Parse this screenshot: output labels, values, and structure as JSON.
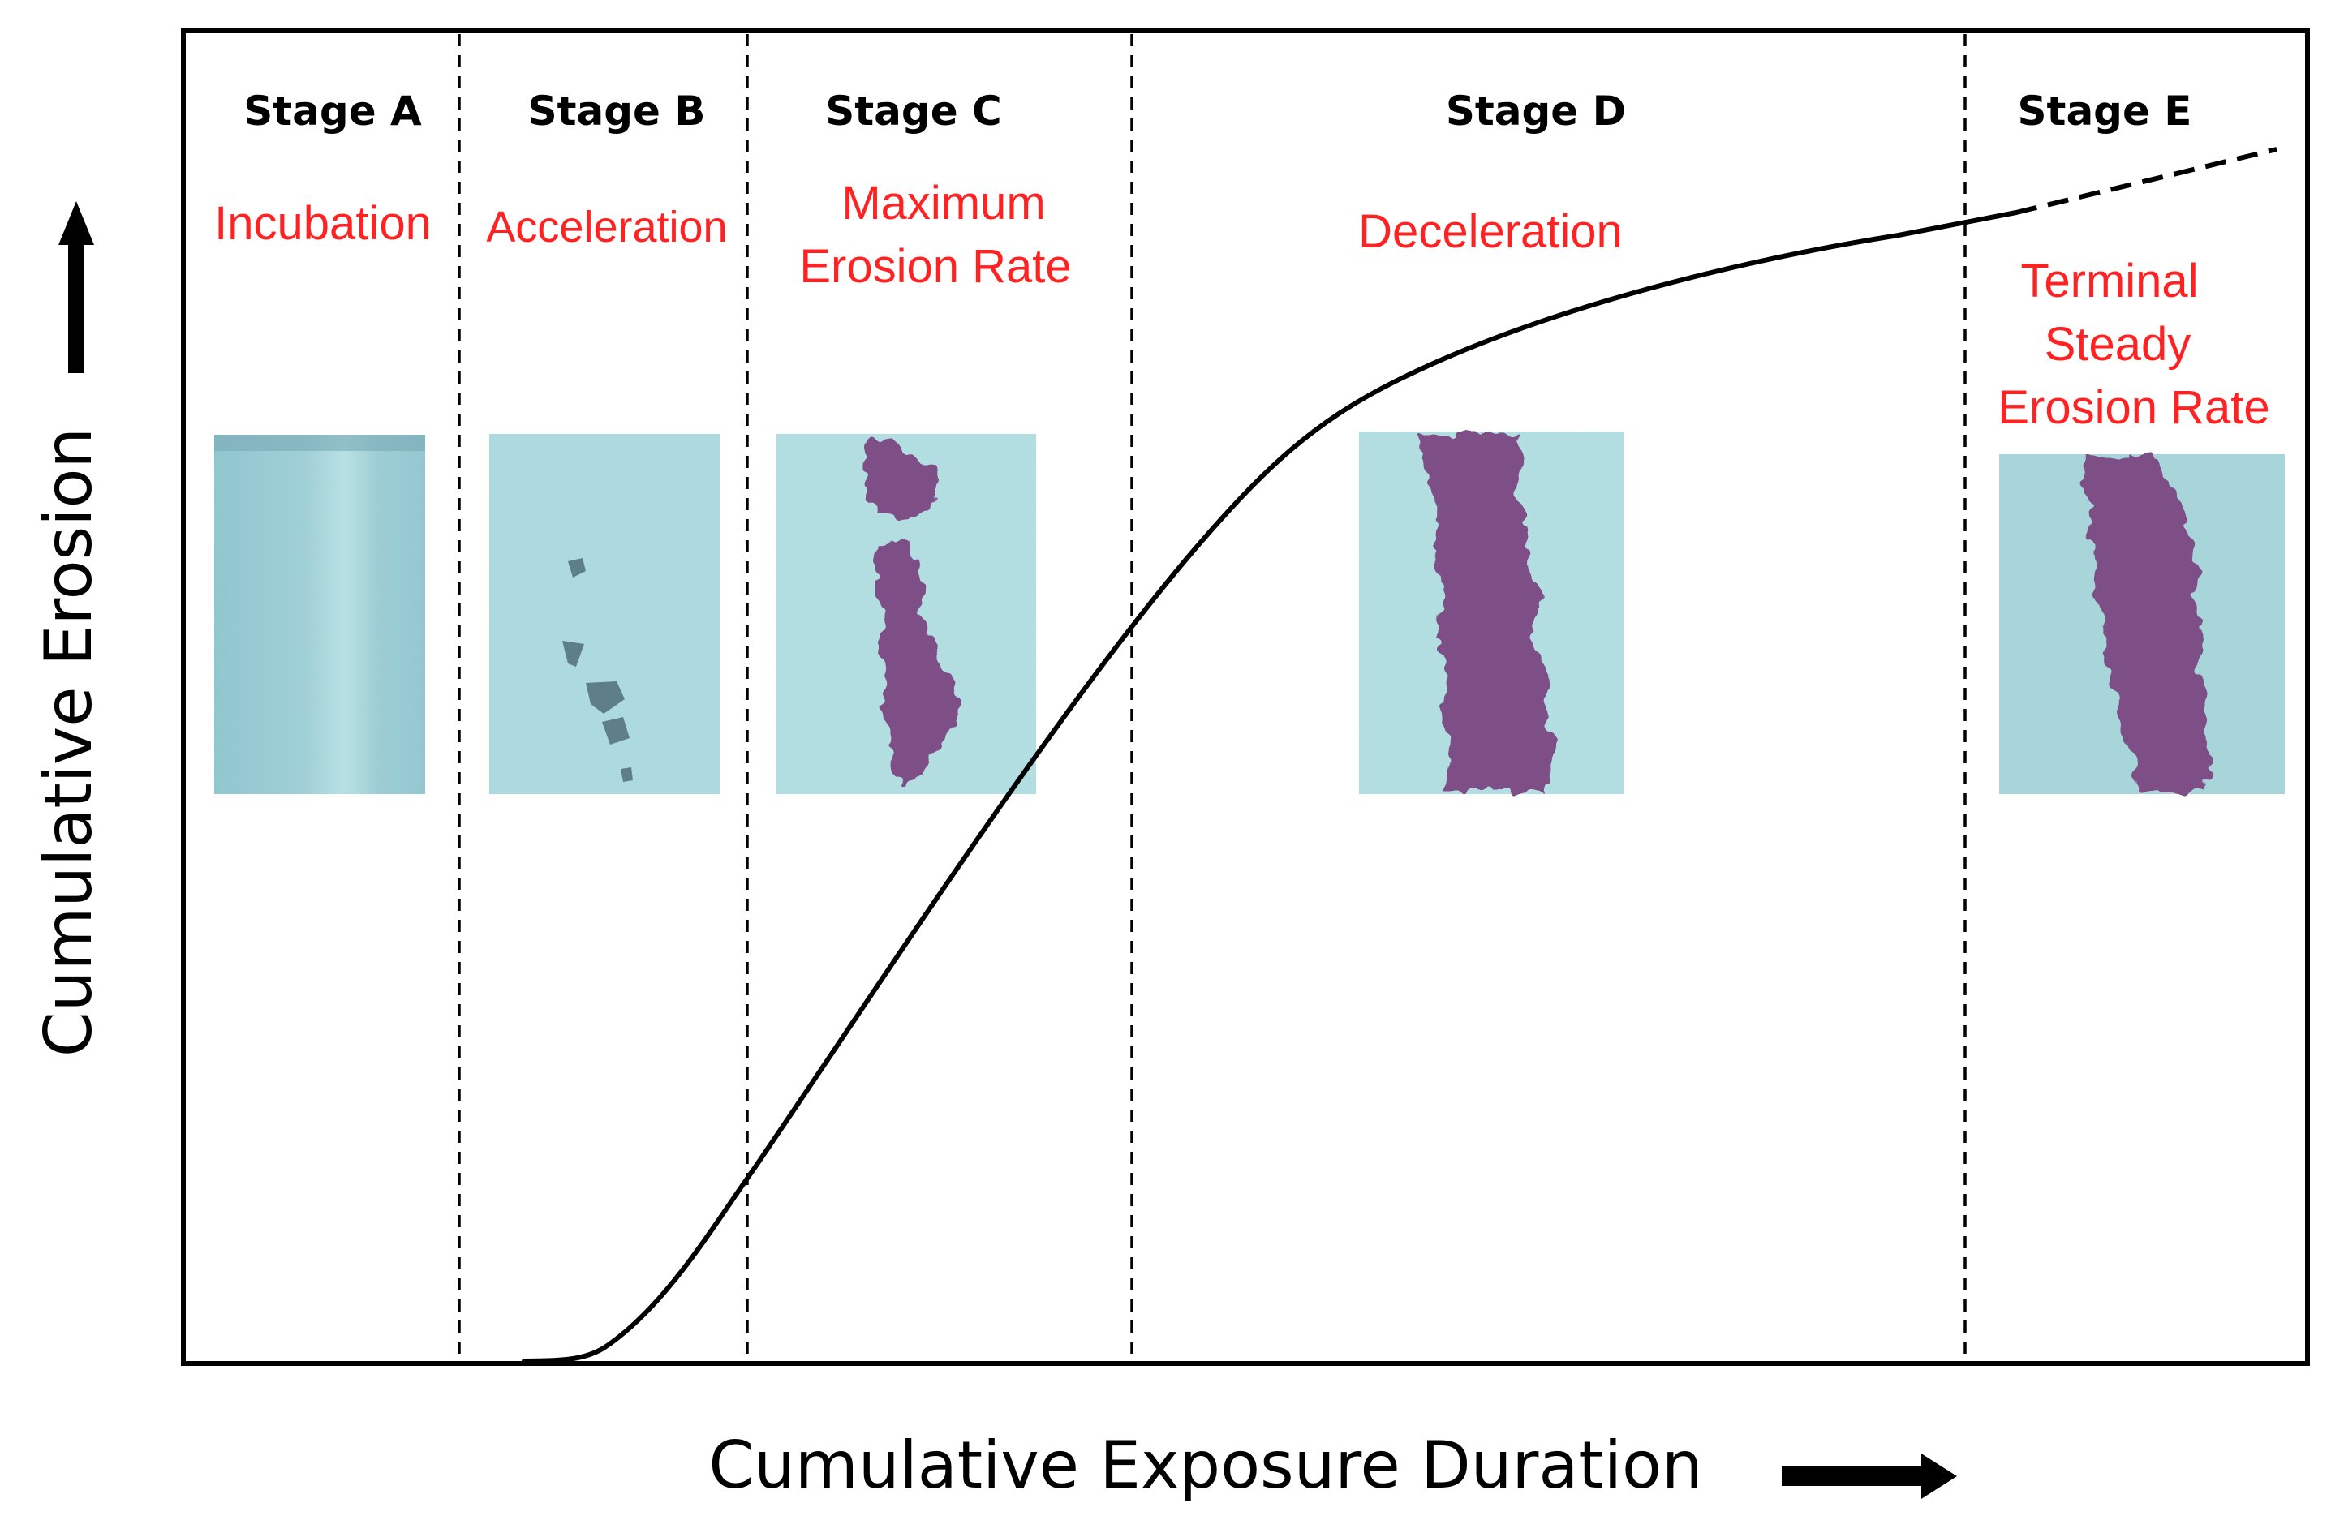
{
  "axes": {
    "x_label": "Cumulative Exposure Duration",
    "y_label": "Cumulative Erosion"
  },
  "colors": {
    "phase_text": "#ff2222",
    "frame": "#000000",
    "curve": "#000000",
    "specimen_surface": "#a9dce0",
    "eroded_region": "#7e4f86"
  },
  "stages": [
    {
      "title": "Stage A",
      "phase": [
        "Incubation"
      ],
      "specimen_damage": "none"
    },
    {
      "title": "Stage B",
      "phase": [
        "Acceleration"
      ],
      "specimen_damage": "isolated pits"
    },
    {
      "title": "Stage C",
      "phase": [
        "Maximum",
        "Erosion Rate"
      ],
      "specimen_damage": "erosion band forming"
    },
    {
      "title": "Stage D",
      "phase": [
        "Deceleration"
      ],
      "specimen_damage": "wide erosion band"
    },
    {
      "title": "Stage E",
      "phase": [
        "Terminal",
        "Steady",
        "Erosion Rate"
      ],
      "specimen_damage": "wide erosion band"
    }
  ]
}
